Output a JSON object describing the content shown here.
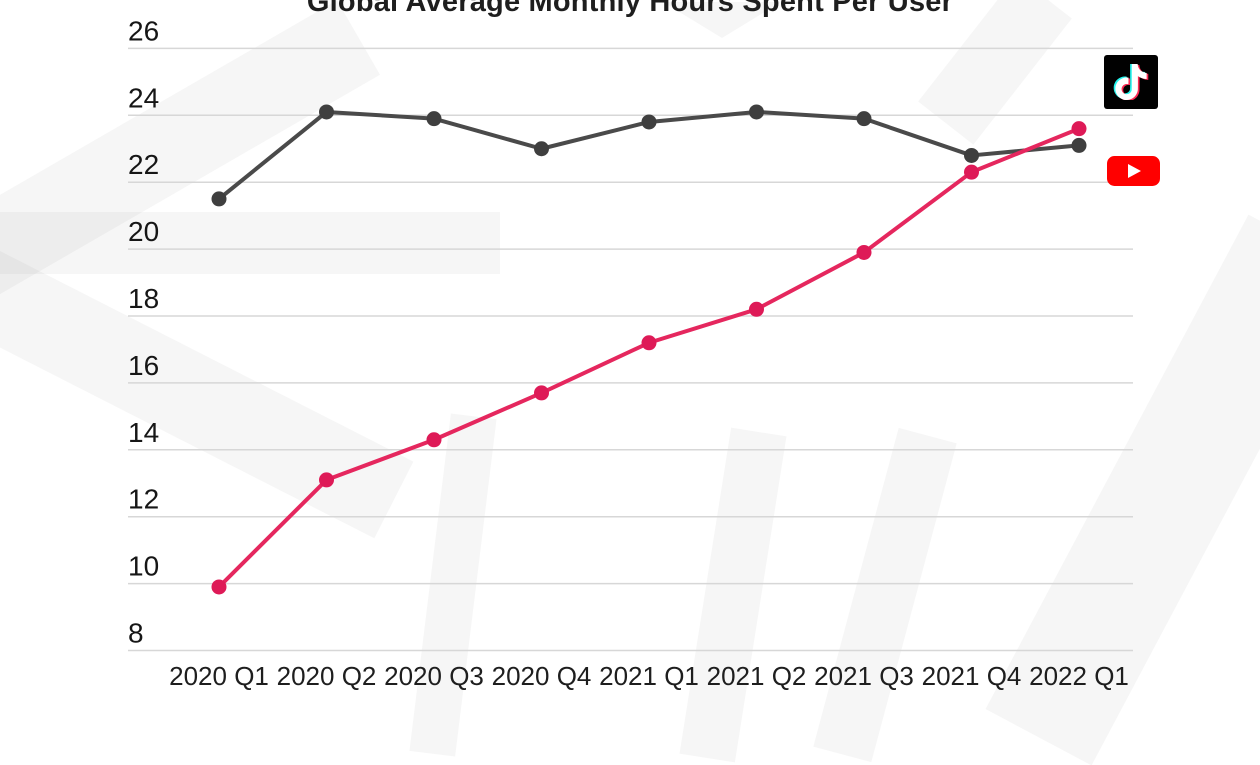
{
  "title": "Global Average Monthly Hours Spent Per User",
  "chart_data": {
    "type": "line",
    "title": "Global Average Monthly Hours Spent Per User",
    "categories": [
      "2020 Q1",
      "2020 Q2",
      "2020 Q3",
      "2020 Q4",
      "2021 Q1",
      "2021 Q2",
      "2021 Q3",
      "2021 Q4",
      "2022 Q1"
    ],
    "series": [
      {
        "name": "YouTube",
        "color": "#4A4A4A",
        "dot": "#3F3F3F",
        "values": [
          21.5,
          24.1,
          23.9,
          23.0,
          23.8,
          24.1,
          23.9,
          22.8,
          23.1
        ]
      },
      {
        "name": "TikTok",
        "color": "#E5275E",
        "dot": "#DE1A57",
        "values": [
          9.9,
          13.1,
          14.3,
          15.7,
          17.2,
          18.2,
          19.9,
          22.3,
          23.6
        ]
      }
    ],
    "xlabel": "",
    "ylabel": "",
    "ylim": [
      8,
      26
    ],
    "yticks": [
      8,
      10,
      12,
      14,
      16,
      18,
      20,
      22,
      24,
      26
    ],
    "grid": true,
    "legend_position": "right-icons",
    "legend": [
      {
        "label": "TikTok",
        "icon": "tiktok-icon"
      },
      {
        "label": "YouTube",
        "icon": "youtube-icon"
      }
    ]
  },
  "colors": {
    "tiktok_pink": "#E5275E",
    "youtube_gray": "#4A4A4A",
    "gridline": "#D7D7D7",
    "tiktok_icon_cyan": "#25F4EE",
    "tiktok_icon_red": "#FE2C55",
    "tiktok_icon_white": "#FFFFFF",
    "youtube_icon_red": "#FF0000",
    "watermark_gray": "#F1F1F1"
  }
}
